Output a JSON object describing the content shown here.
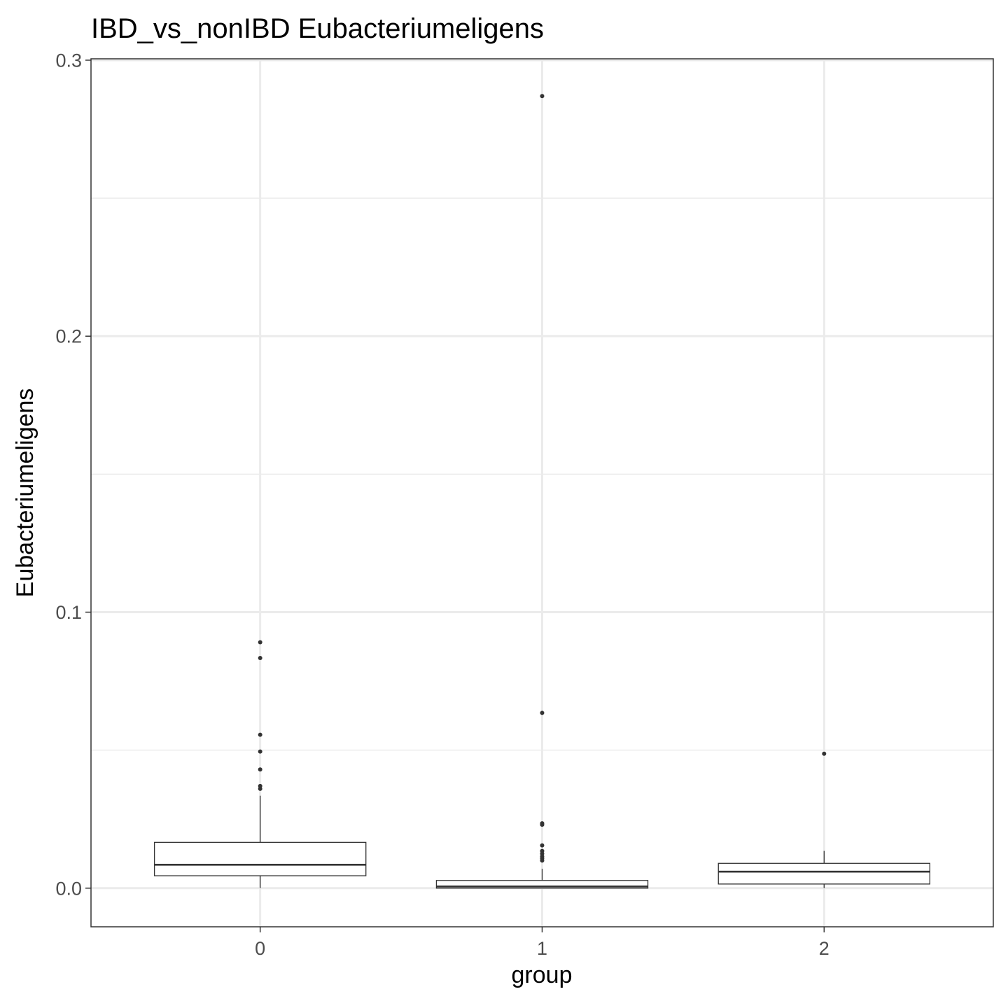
{
  "chart_data": {
    "type": "boxplot",
    "title": "IBD_vs_nonIBD Eubacteriumeligens",
    "xlabel": "group",
    "ylabel": "Eubacteriumeligens",
    "categories": [
      "0",
      "1",
      "2"
    ],
    "ylim": [
      -0.014,
      0.3005
    ],
    "yticks": [
      0.0,
      0.1,
      0.2,
      0.3
    ],
    "ytick_labels": [
      "0.0",
      "0.1",
      "0.2",
      "0.3"
    ],
    "grid": true,
    "boxes": [
      {
        "group": "0",
        "whisker_low": 0.0,
        "q1": 0.0045,
        "median": 0.0085,
        "q3": 0.0166,
        "whisker_high": 0.0335,
        "outliers": [
          0.0891,
          0.0834,
          0.0556,
          0.0495,
          0.043,
          0.037,
          0.036
        ]
      },
      {
        "group": "1",
        "whisker_low": 0.0,
        "q1": 0.0,
        "median": 0.0006,
        "q3": 0.0028,
        "whisker_high": 0.007,
        "outliers": [
          0.287,
          0.0635,
          0.0235,
          0.023,
          0.0155,
          0.0135,
          0.0125,
          0.0115,
          0.0108,
          0.01
        ]
      },
      {
        "group": "2",
        "whisker_low": 0.0,
        "q1": 0.0015,
        "median": 0.006,
        "q3": 0.009,
        "whisker_high": 0.0135,
        "outliers": [
          0.0487
        ]
      }
    ]
  }
}
